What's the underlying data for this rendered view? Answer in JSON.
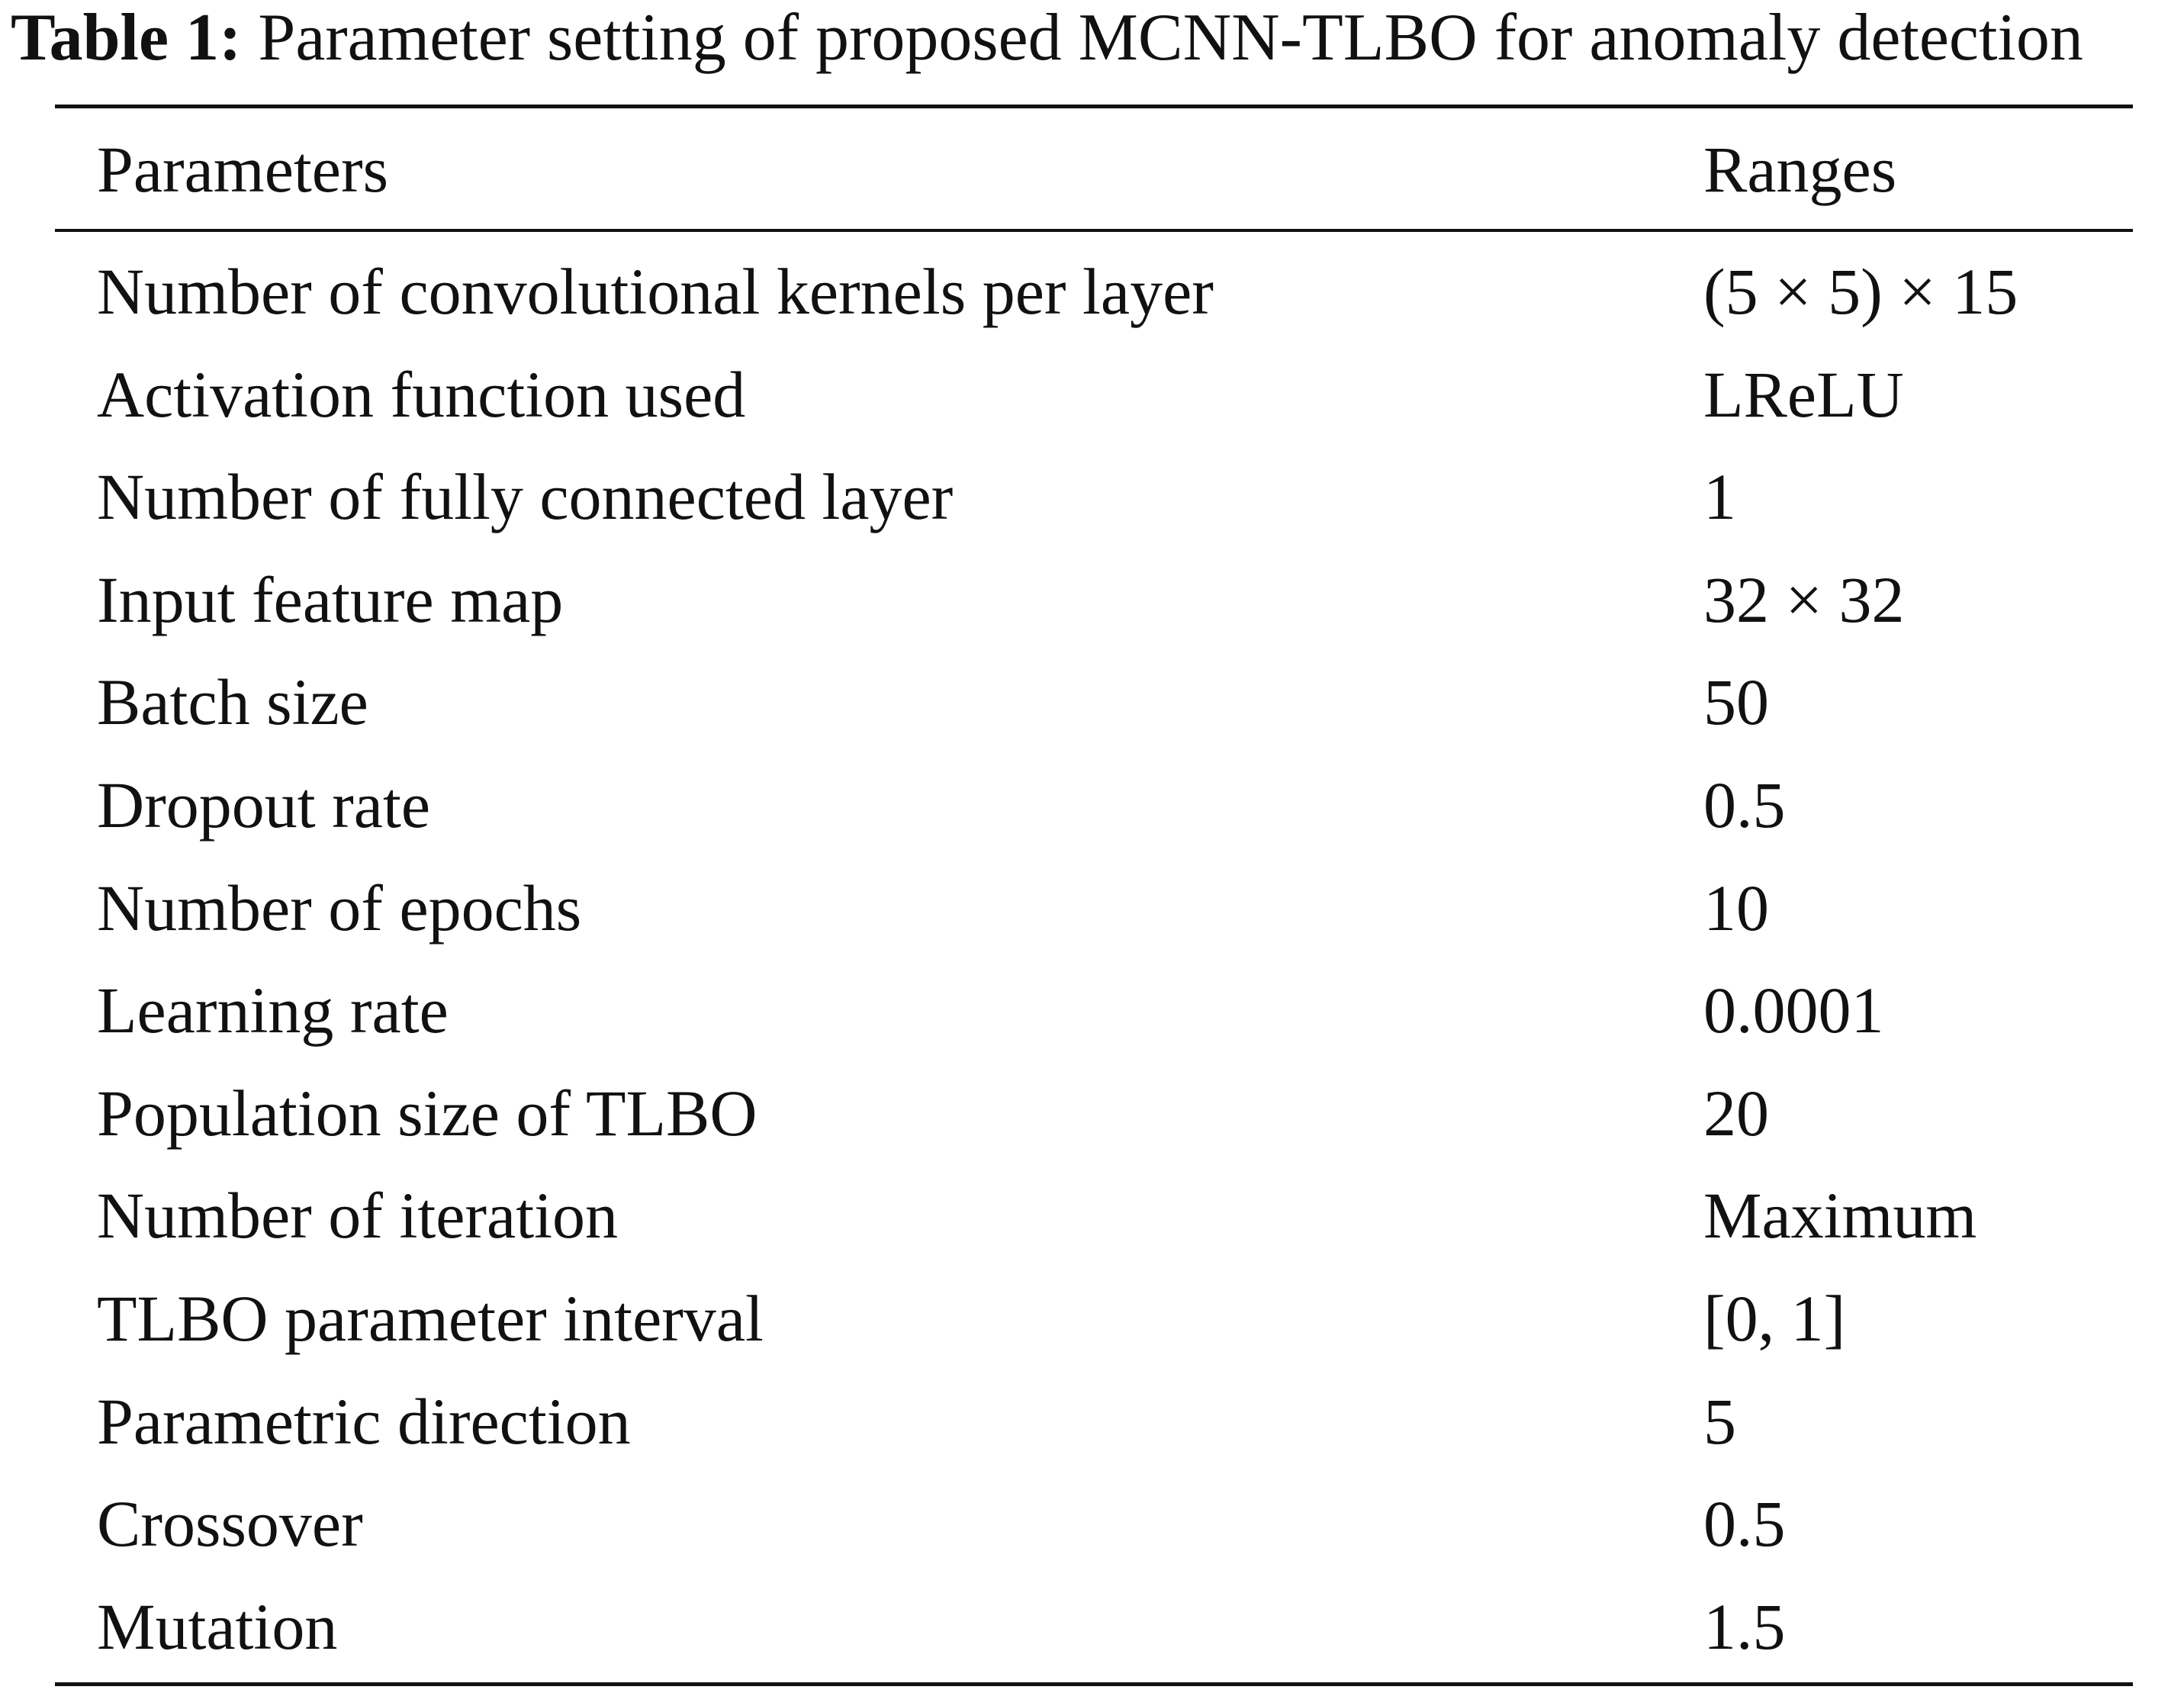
{
  "caption": {
    "label": "Table 1:",
    "text": "Parameter setting of proposed MCNN-TLBO for anomaly detection"
  },
  "table": {
    "columns": [
      "Parameters",
      "Ranges"
    ],
    "rows": [
      [
        "Number of convolutional kernels per layer",
        "(5 × 5) × 15"
      ],
      [
        "Activation function used",
        "LReLU"
      ],
      [
        "Number of fully connected layer",
        "1"
      ],
      [
        "Input feature map",
        "32 × 32"
      ],
      [
        "Batch size",
        "50"
      ],
      [
        "Dropout rate",
        "0.5"
      ],
      [
        "Number of epochs",
        "10"
      ],
      [
        "Learning rate",
        "0.0001"
      ],
      [
        "Population size of TLBO",
        "20"
      ],
      [
        "Number of iteration",
        "Maximum"
      ],
      [
        "TLBO parameter interval",
        "[0, 1]"
      ],
      [
        "Parametric direction",
        "5"
      ],
      [
        "Crossover",
        "0.5"
      ],
      [
        "Mutation",
        "1.5"
      ]
    ]
  }
}
